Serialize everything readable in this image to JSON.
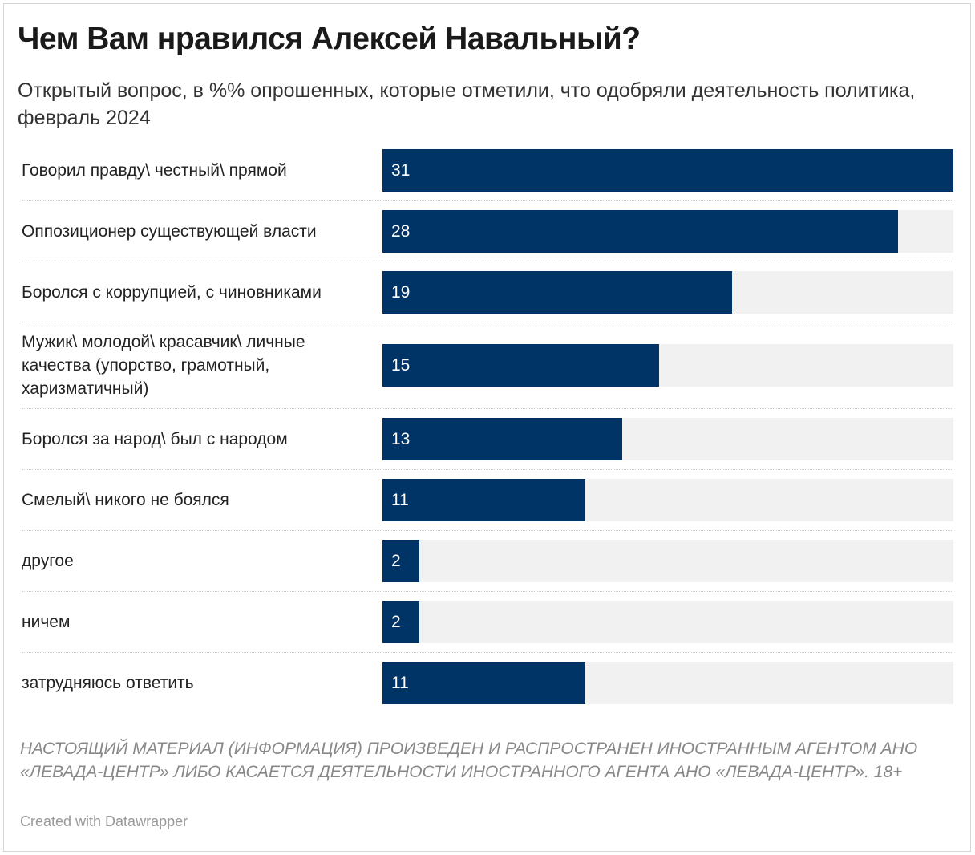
{
  "header": {
    "title": "Чем Вам нравился Алексей Навальный?",
    "subtitle": "Открытый вопрос, в %% опрошенных, которые отметили, что одобряли деятельность политика, февраль 2024"
  },
  "colors": {
    "bar": "#003366",
    "track": "#f1f1f1"
  },
  "chart_data": {
    "type": "bar",
    "orientation": "horizontal",
    "categories": [
      "Говорил правду\\ честный\\ прямой",
      "Оппозиционер существующей власти",
      "Боролся с коррупцией, с чиновниками",
      "Мужик\\ молодой\\ красавчик\\ личные качества (упорство, грамотный, харизматичный)",
      "Боролся за народ\\ был с народом",
      "Смелый\\ никого не боялся",
      "другое",
      "ничем",
      "затрудняюсь ответить"
    ],
    "values": [
      31,
      28,
      19,
      15,
      13,
      11,
      2,
      2,
      11
    ],
    "value_labels": [
      "31",
      "28",
      "19",
      "15",
      "13",
      "11",
      "2",
      "2",
      "11"
    ],
    "xlim": [
      0,
      31
    ],
    "grid": false,
    "legend": "none"
  },
  "footer": {
    "notes": "Настоящий материал (информация) произведен и распространен иностранным агентом АНО «Левада-Центр» либо касается деятельности иностранного агента АНО «Левада-Центр». 18+",
    "credit": "Created with Datawrapper"
  }
}
